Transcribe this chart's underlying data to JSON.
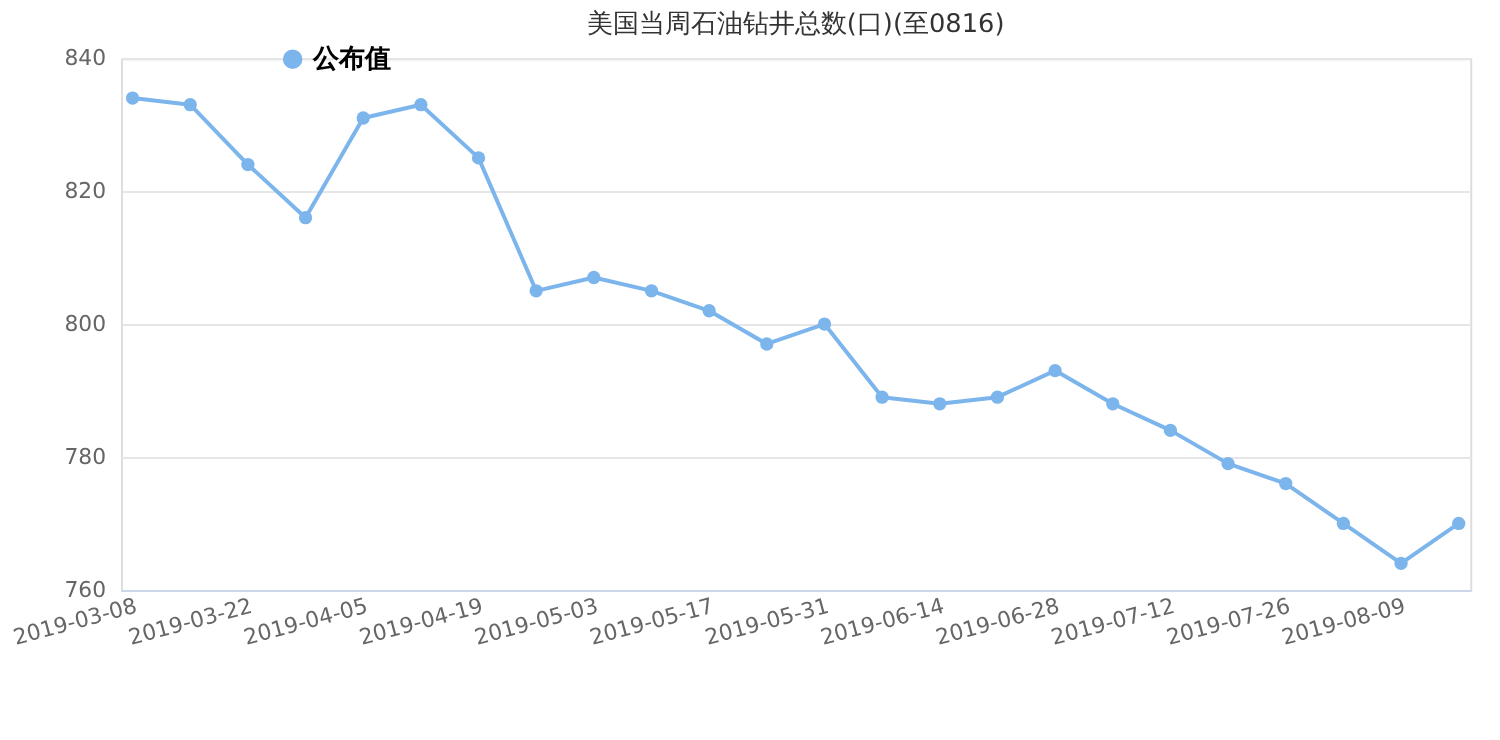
{
  "chart_data": {
    "type": "line",
    "title": "美国当周石油钻井总数(口)(至0816)",
    "categories": [
      "2019-03-08",
      null,
      "2019-03-22",
      null,
      "2019-04-05",
      null,
      "2019-04-19",
      null,
      "2019-05-03",
      null,
      "2019-05-17",
      null,
      "2019-05-31",
      null,
      "2019-06-14",
      null,
      "2019-06-28",
      null,
      "2019-07-12",
      null,
      "2019-07-26",
      null,
      "2019-08-09",
      null
    ],
    "series": [
      {
        "name": "公布值",
        "color": "#7cb5ec",
        "values": [
          834,
          833,
          824,
          816,
          831,
          833,
          825,
          805,
          807,
          805,
          802,
          797,
          800,
          789,
          788,
          789,
          793,
          788,
          784,
          779,
          776,
          770,
          764,
          770
        ]
      }
    ],
    "ylim": [
      760,
      840
    ],
    "yticks": [
      760,
      780,
      800,
      820,
      840
    ],
    "grid": "y",
    "legend": "top left",
    "marker": "circle",
    "line_style": "solid"
  }
}
